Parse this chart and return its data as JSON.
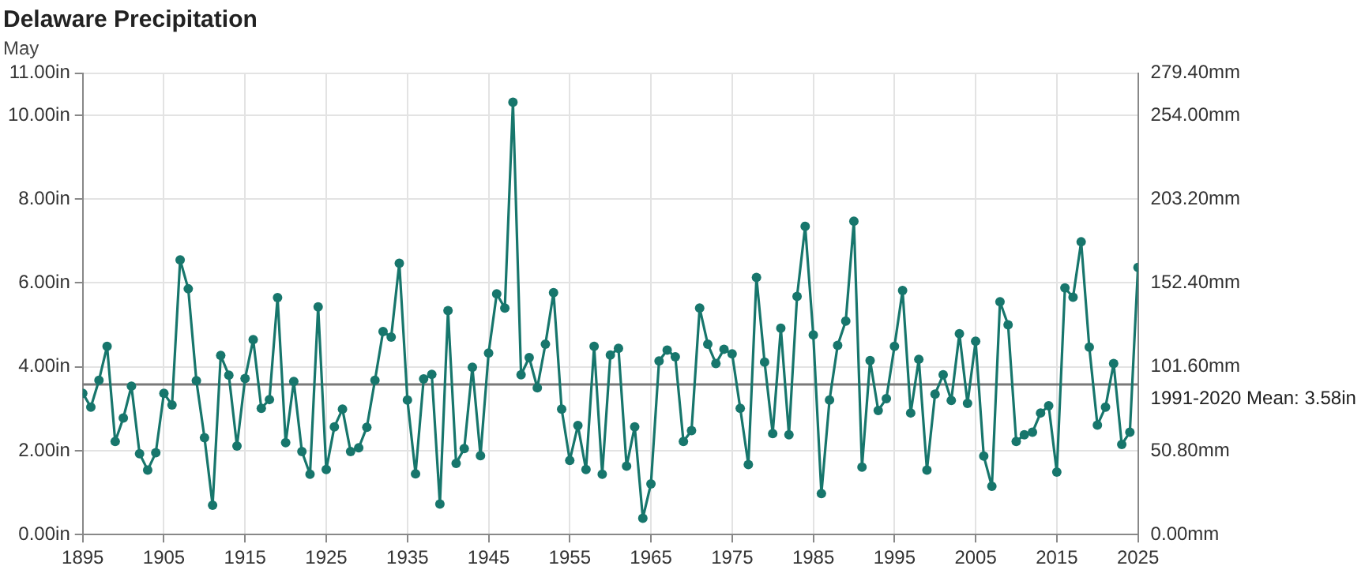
{
  "chart_data": {
    "type": "line",
    "title": "Delaware Precipitation",
    "subtitle": "May",
    "x": [
      1895,
      1896,
      1897,
      1898,
      1899,
      1900,
      1901,
      1902,
      1903,
      1904,
      1905,
      1906,
      1907,
      1908,
      1909,
      1910,
      1911,
      1912,
      1913,
      1914,
      1915,
      1916,
      1917,
      1918,
      1919,
      1920,
      1921,
      1922,
      1923,
      1924,
      1925,
      1926,
      1927,
      1928,
      1929,
      1930,
      1931,
      1932,
      1933,
      1934,
      1935,
      1936,
      1937,
      1938,
      1939,
      1940,
      1941,
      1942,
      1943,
      1944,
      1945,
      1946,
      1947,
      1948,
      1949,
      1950,
      1951,
      1952,
      1953,
      1954,
      1955,
      1956,
      1957,
      1958,
      1959,
      1960,
      1961,
      1962,
      1963,
      1964,
      1965,
      1966,
      1967,
      1968,
      1969,
      1970,
      1971,
      1972,
      1973,
      1974,
      1975,
      1976,
      1977,
      1978,
      1979,
      1980,
      1981,
      1982,
      1983,
      1984,
      1985,
      1986,
      1987,
      1988,
      1989,
      1990,
      1991,
      1992,
      1993,
      1994,
      1995,
      1996,
      1997,
      1998,
      1999,
      2000,
      2001,
      2002,
      2003,
      2004,
      2005,
      2006,
      2007,
      2008,
      2009,
      2010,
      2011,
      2012,
      2013,
      2014,
      2015,
      2016,
      2017,
      2018,
      2019,
      2020,
      2021,
      2022,
      2023,
      2024,
      2025
    ],
    "values": [
      3.37,
      3.04,
      3.68,
      4.49,
      2.22,
      2.78,
      3.54,
      1.93,
      1.54,
      1.95,
      3.37,
      3.09,
      6.55,
      5.86,
      3.67,
      2.31,
      0.7,
      4.27,
      3.8,
      2.11,
      3.72,
      4.65,
      3.01,
      3.22,
      5.65,
      2.19,
      3.65,
      1.98,
      1.44,
      5.43,
      1.55,
      2.57,
      2.99,
      1.98,
      2.07,
      2.56,
      3.68,
      4.84,
      4.71,
      6.47,
      3.21,
      1.45,
      3.71,
      3.82,
      0.73,
      5.34,
      1.7,
      2.05,
      3.99,
      1.88,
      4.33,
      5.74,
      5.4,
      10.31,
      3.81,
      4.22,
      3.5,
      4.54,
      5.77,
      2.99,
      1.77,
      2.6,
      1.55,
      4.49,
      1.44,
      4.28,
      4.44,
      1.63,
      2.57,
      0.39,
      1.21,
      4.14,
      4.4,
      4.24,
      2.22,
      2.48,
      5.4,
      4.54,
      4.08,
      4.42,
      4.31,
      3.01,
      1.67,
      6.13,
      4.11,
      2.41,
      4.92,
      2.38,
      5.68,
      7.35,
      4.76,
      0.98,
      3.21,
      4.51,
      5.09,
      7.47,
      1.61,
      4.15,
      2.96,
      3.24,
      4.49,
      5.82,
      2.9,
      4.18,
      1.54,
      3.35,
      3.81,
      3.2,
      4.79,
      3.13,
      4.61,
      1.87,
      1.15,
      5.55,
      5.0,
      2.22,
      2.38,
      2.44,
      2.9,
      3.07,
      1.49,
      5.88,
      5.66,
      6.98,
      4.47,
      2.61,
      3.04,
      4.08,
      2.15,
      2.44,
      6.37
    ],
    "color": "#17766c",
    "marker": "circle",
    "line_style": "solid",
    "grid": true,
    "legend": false,
    "xlim": [
      1895,
      2025
    ],
    "xticks": [
      1895,
      1905,
      1915,
      1925,
      1935,
      1945,
      1955,
      1965,
      1975,
      1985,
      1995,
      2005,
      2015,
      2025
    ],
    "ylim": [
      0,
      11
    ],
    "yticks": [
      {
        "value": 0,
        "label": "0.00in"
      },
      {
        "value": 2,
        "label": "2.00in"
      },
      {
        "value": 4,
        "label": "4.00in"
      },
      {
        "value": 6,
        "label": "6.00in"
      },
      {
        "value": 8,
        "label": "8.00in"
      },
      {
        "value": 10,
        "label": "10.00in"
      },
      {
        "value": 11,
        "label": "11.00in"
      }
    ],
    "y2lim": [
      0,
      279.4
    ],
    "y2ticks": [
      {
        "value": 0,
        "label": "0.00mm"
      },
      {
        "value": 50.8,
        "label": "50.80mm"
      },
      {
        "value": 101.6,
        "label": "101.60mm"
      },
      {
        "value": 152.4,
        "label": "152.40mm"
      },
      {
        "value": 203.2,
        "label": "203.20mm"
      },
      {
        "value": 254,
        "label": "254.00mm"
      },
      {
        "value": 279.4,
        "label": "279.40mm"
      }
    ],
    "ref_lines": [
      {
        "axis": "y",
        "value": 3.58,
        "label": "1991-2020 Mean: 3.58in",
        "color": "#7a7a7a",
        "line_style": "solid"
      }
    ]
  }
}
